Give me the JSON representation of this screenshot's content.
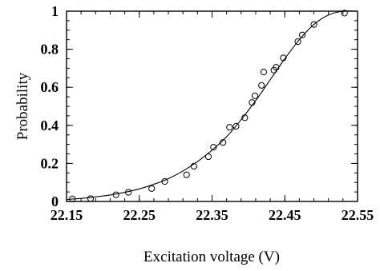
{
  "chart_data": {
    "type": "scatter",
    "title": "",
    "xlabel": "Excitation voltage (V)",
    "ylabel": "Probability",
    "xlim": [
      22.15,
      22.55
    ],
    "ylim": [
      0,
      1
    ],
    "x_ticks": [
      22.15,
      22.25,
      22.35,
      22.45,
      22.55
    ],
    "x_tick_labels": [
      "22.15",
      "22.25",
      "22.35",
      "22.45",
      "22.55"
    ],
    "y_ticks": [
      0,
      0.2,
      0.4,
      0.6,
      0.8,
      1
    ],
    "y_tick_labels": [
      "0",
      "0.2",
      "0.4",
      "0.6",
      "0.8",
      "1"
    ],
    "x_minor_step": 0.02,
    "y_minor_step": 0.05,
    "grid": false,
    "legend": "none",
    "colors": {
      "axis": "#000000",
      "markers": "#000000",
      "fit_line": "#000000",
      "background": "#ffffff"
    },
    "series": [
      {
        "kind": "markers",
        "marker": "open-circle",
        "x": [
          22.158,
          22.183,
          22.218,
          22.235,
          22.267,
          22.285,
          22.315,
          22.325,
          22.345,
          22.352,
          22.365,
          22.374,
          22.383,
          22.395,
          22.405,
          22.409,
          22.418,
          22.421,
          22.435,
          22.438,
          22.448,
          22.468,
          22.474,
          22.49,
          22.532
        ],
        "y": [
          0.013,
          0.015,
          0.035,
          0.048,
          0.068,
          0.105,
          0.14,
          0.185,
          0.235,
          0.285,
          0.31,
          0.39,
          0.395,
          0.44,
          0.52,
          0.555,
          0.61,
          0.68,
          0.69,
          0.705,
          0.755,
          0.84,
          0.875,
          0.93,
          0.99
        ]
      },
      {
        "kind": "line",
        "x": [
          22.15,
          22.17,
          22.19,
          22.21,
          22.23,
          22.25,
          22.27,
          22.29,
          22.31,
          22.33,
          22.35,
          22.37,
          22.39,
          22.41,
          22.43,
          22.45,
          22.47,
          22.49,
          22.51,
          22.53,
          22.55
        ],
        "y": [
          0.01,
          0.016,
          0.024,
          0.034,
          0.048,
          0.066,
          0.09,
          0.12,
          0.16,
          0.21,
          0.27,
          0.34,
          0.43,
          0.53,
          0.64,
          0.75,
          0.85,
          0.93,
          0.98,
          1.0,
          1.0
        ]
      }
    ]
  }
}
